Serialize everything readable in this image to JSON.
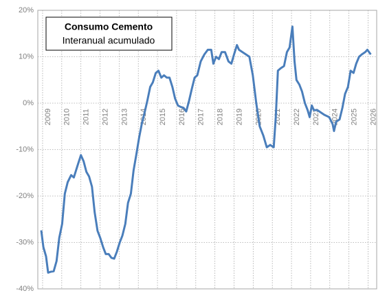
{
  "chart_data": {
    "type": "line",
    "title": "Consumo Cemento",
    "subtitle": "Interanual acumulado",
    "x": [
      2008.93,
      2009.04,
      2009.18,
      2009.29,
      2009.44,
      2009.58,
      2009.73,
      2009.87,
      2010.02,
      2010.16,
      2010.31,
      2010.49,
      2010.63,
      2010.82,
      2011.0,
      2011.14,
      2011.29,
      2011.43,
      2011.58,
      2011.72,
      2011.87,
      2012.01,
      2012.16,
      2012.3,
      2012.45,
      2012.59,
      2012.74,
      2012.88,
      2013.03,
      2013.17,
      2013.32,
      2013.46,
      2013.61,
      2013.75,
      2013.9,
      2014.04,
      2014.18,
      2014.33,
      2014.47,
      2014.62,
      2014.76,
      2014.91,
      2015.05,
      2015.2,
      2015.34,
      2015.49,
      2015.63,
      2015.78,
      2015.92,
      2016.07,
      2016.21,
      2016.36,
      2016.5,
      2016.65,
      2016.79,
      2016.94,
      2017.08,
      2017.26,
      2017.45,
      2017.63,
      2017.81,
      2017.92,
      2018.06,
      2018.21,
      2018.35,
      2018.53,
      2018.71,
      2018.86,
      2019.0,
      2019.15,
      2019.26,
      2019.44,
      2019.62,
      2019.8,
      2019.98,
      2020.16,
      2020.34,
      2020.53,
      2020.71,
      2020.89,
      2021.07,
      2021.18,
      2021.29,
      2021.43,
      2021.61,
      2021.76,
      2021.9,
      2022.05,
      2022.16,
      2022.26,
      2022.41,
      2022.55,
      2022.7,
      2022.84,
      2022.95,
      2023.06,
      2023.17,
      2023.35,
      2023.53,
      2023.71,
      2023.97,
      2024.15,
      2024.22,
      2024.33,
      2024.51,
      2024.66,
      2024.8,
      2024.95,
      2025.09,
      2025.24,
      2025.38,
      2025.53,
      2025.67,
      2025.85,
      2025.96,
      2026.14
    ],
    "series": [
      {
        "name": "Consumo Cemento",
        "color": "#4a7ebb",
        "values": [
          -27.4,
          -31,
          -33,
          -36.5,
          -36.3,
          -36.2,
          -34,
          -29,
          -26,
          -19.5,
          -17,
          -15.5,
          -16,
          -13.5,
          -11.2,
          -12.5,
          -14.8,
          -15.8,
          -18,
          -23.5,
          -27.5,
          -29,
          -31,
          -32.5,
          -32.5,
          -33.3,
          -33.5,
          -32,
          -30,
          -28.5,
          -26,
          -21.5,
          -19.5,
          -14.5,
          -11,
          -7.5,
          -4.5,
          -2,
          0.5,
          3.5,
          4.5,
          6.5,
          7,
          5.5,
          6,
          5.5,
          5.5,
          3.5,
          1,
          -0.5,
          -0.8,
          -1,
          -1.8,
          0.5,
          3,
          5.5,
          6,
          9,
          10.5,
          11.5,
          11.5,
          8.5,
          10,
          9.5,
          11,
          11,
          9,
          8.5,
          10.5,
          12.5,
          11.5,
          11,
          10.5,
          10,
          6,
          0,
          -5,
          -7,
          -9.5,
          -9,
          -9.5,
          -3,
          7,
          7.5,
          8,
          11,
          12,
          16.5,
          9,
          5,
          4,
          2.5,
          0,
          -1.5,
          -3,
          -0.5,
          -1.5,
          -1.5,
          -2,
          -2.5,
          -3,
          -4.5,
          -6,
          -4,
          -3.5,
          -1,
          2,
          3.5,
          7,
          6.5,
          8.5,
          10,
          10.5,
          11,
          11.5,
          10.5
        ]
      }
    ],
    "xlim": [
      2008.75,
      2026.45
    ],
    "xticks": [
      2009,
      2010,
      2011,
      2012,
      2013,
      2014,
      2015,
      2016,
      2017,
      2018,
      2019,
      2020,
      2021,
      2022,
      2023,
      2024,
      2025,
      2026
    ],
    "ylim": [
      -40,
      20
    ],
    "yticks": [
      {
        "value": -40,
        "label": "-40%"
      },
      {
        "value": -30,
        "label": "-30%"
      },
      {
        "value": -20,
        "label": "-20%"
      },
      {
        "value": -10,
        "label": "-10%"
      },
      {
        "value": 0,
        "label": "0%"
      },
      {
        "value": 10,
        "label": "10%"
      },
      {
        "value": 20,
        "label": "20%"
      }
    ],
    "grid": true
  }
}
